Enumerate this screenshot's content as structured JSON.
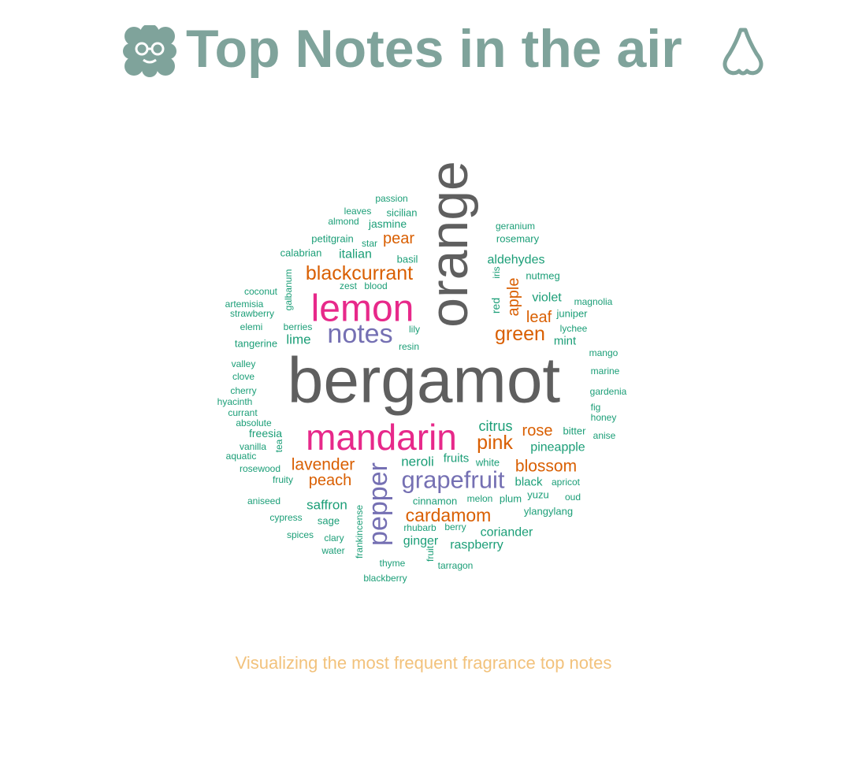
{
  "title": {
    "text": "Top Notes in the air",
    "icon_left": "nerd-face-cloud-icon",
    "icon_right": "nose-icon",
    "color": "#7fa39b"
  },
  "subtitle": {
    "text": "Visualizing the most frequent fragrance top notes",
    "color": "#f2c27c"
  },
  "chart_data": {
    "type": "wordcloud",
    "title": "Top Notes in the air",
    "subtitle": "Visualizing the most frequent fragrance top notes",
    "words": [
      {
        "text": "bergamot",
        "size": 82,
        "color": "#5f5f5f",
        "rotate": 0
      },
      {
        "text": "orange",
        "size": 68,
        "color": "#5f5f5f",
        "rotate": -90
      },
      {
        "text": "lemon",
        "size": 48,
        "color": "#e7298a",
        "rotate": 0
      },
      {
        "text": "mandarin",
        "size": 46,
        "color": "#e7298a",
        "rotate": 0
      },
      {
        "text": "grapefruit",
        "size": 31,
        "color": "#7570b3",
        "rotate": 0
      },
      {
        "text": "notes",
        "size": 34,
        "color": "#7570b3",
        "rotate": 0
      },
      {
        "text": "pepper",
        "size": 34,
        "color": "#7570b3",
        "rotate": -90
      },
      {
        "text": "blackcurrant",
        "size": 25,
        "color": "#d95f02",
        "rotate": 0
      },
      {
        "text": "green",
        "size": 25,
        "color": "#d95f02",
        "rotate": 0
      },
      {
        "text": "pink",
        "size": 25,
        "color": "#d95f02",
        "rotate": 0
      },
      {
        "text": "cardamom",
        "size": 23,
        "color": "#d95f02",
        "rotate": 0
      },
      {
        "text": "lavender",
        "size": 21,
        "color": "#d95f02",
        "rotate": 0
      },
      {
        "text": "blossom",
        "size": 21,
        "color": "#d95f02",
        "rotate": 0
      },
      {
        "text": "peach",
        "size": 20,
        "color": "#d95f02",
        "rotate": 0
      },
      {
        "text": "pear",
        "size": 20,
        "color": "#d95f02",
        "rotate": 0
      },
      {
        "text": "apple",
        "size": 20,
        "color": "#d95f02",
        "rotate": -90
      },
      {
        "text": "rose",
        "size": 20,
        "color": "#d95f02",
        "rotate": 0
      },
      {
        "text": "leaf",
        "size": 20,
        "color": "#d95f02",
        "rotate": 0
      },
      {
        "text": "citrus",
        "size": 18,
        "color": "#1b9e77",
        "rotate": 0
      },
      {
        "text": "neroli",
        "size": 17,
        "color": "#1b9e77",
        "rotate": 0
      },
      {
        "text": "saffron",
        "size": 17,
        "color": "#1b9e77",
        "rotate": 0
      },
      {
        "text": "italian",
        "size": 16,
        "color": "#1b9e77",
        "rotate": 0
      },
      {
        "text": "violet",
        "size": 16,
        "color": "#1b9e77",
        "rotate": 0
      },
      {
        "text": "pineapple",
        "size": 16,
        "color": "#1b9e77",
        "rotate": 0
      },
      {
        "text": "raspberry",
        "size": 16,
        "color": "#1b9e77",
        "rotate": 0
      },
      {
        "text": "coriander",
        "size": 16,
        "color": "#1b9e77",
        "rotate": 0
      },
      {
        "text": "ginger",
        "size": 16,
        "color": "#1b9e77",
        "rotate": 0
      },
      {
        "text": "lime",
        "size": 17,
        "color": "#1b9e77",
        "rotate": 0
      },
      {
        "text": "aldehydes",
        "size": 16,
        "color": "#1b9e77",
        "rotate": 0
      },
      {
        "text": "fruits",
        "size": 15,
        "color": "#1b9e77",
        "rotate": 0
      },
      {
        "text": "black",
        "size": 15,
        "color": "#1b9e77",
        "rotate": 0
      },
      {
        "text": "mint",
        "size": 15,
        "color": "#1b9e77",
        "rotate": 0
      },
      {
        "text": "jasmine",
        "size": 14,
        "color": "#1b9e77",
        "rotate": 0
      },
      {
        "text": "freesia",
        "size": 14,
        "color": "#1b9e77",
        "rotate": 0
      },
      {
        "text": "red",
        "size": 14,
        "color": "#1b9e77",
        "rotate": -90
      },
      {
        "text": "sicilian",
        "size": 13,
        "color": "#1b9e77",
        "rotate": 0
      },
      {
        "text": "petitgrain",
        "size": 13,
        "color": "#1b9e77",
        "rotate": 0
      },
      {
        "text": "rosemary",
        "size": 13,
        "color": "#1b9e77",
        "rotate": 0
      },
      {
        "text": "calabrian",
        "size": 13,
        "color": "#1b9e77",
        "rotate": 0
      },
      {
        "text": "basil",
        "size": 13,
        "color": "#1b9e77",
        "rotate": 0
      },
      {
        "text": "nutmeg",
        "size": 13,
        "color": "#1b9e77",
        "rotate": 0
      },
      {
        "text": "galbanum",
        "size": 12,
        "color": "#1b9e77",
        "rotate": -90
      },
      {
        "text": "juniper",
        "size": 13,
        "color": "#1b9e77",
        "rotate": 0
      },
      {
        "text": "sage",
        "size": 13,
        "color": "#1b9e77",
        "rotate": 0
      },
      {
        "text": "cinnamon",
        "size": 13,
        "color": "#1b9e77",
        "rotate": 0
      },
      {
        "text": "plum",
        "size": 13,
        "color": "#1b9e77",
        "rotate": 0
      },
      {
        "text": "white",
        "size": 13,
        "color": "#1b9e77",
        "rotate": 0
      },
      {
        "text": "yuzu",
        "size": 13,
        "color": "#1b9e77",
        "rotate": 0
      },
      {
        "text": "ylangylang",
        "size": 13,
        "color": "#1b9e77",
        "rotate": 0
      },
      {
        "text": "bitter",
        "size": 13,
        "color": "#1b9e77",
        "rotate": 0
      },
      {
        "text": "passion",
        "size": 12,
        "color": "#1b9e77",
        "rotate": 0
      },
      {
        "text": "leaves",
        "size": 12,
        "color": "#1b9e77",
        "rotate": 0
      },
      {
        "text": "almond",
        "size": 12,
        "color": "#1b9e77",
        "rotate": 0
      },
      {
        "text": "star",
        "size": 12,
        "color": "#1b9e77",
        "rotate": 0
      },
      {
        "text": "geranium",
        "size": 12,
        "color": "#1b9e77",
        "rotate": 0
      },
      {
        "text": "iris",
        "size": 12,
        "color": "#1b9e77",
        "rotate": -90
      },
      {
        "text": "zest",
        "size": 12,
        "color": "#1b9e77",
        "rotate": 0
      },
      {
        "text": "blood",
        "size": 12,
        "color": "#1b9e77",
        "rotate": 0
      },
      {
        "text": "coconut",
        "size": 12,
        "color": "#1b9e77",
        "rotate": 0
      },
      {
        "text": "artemisia",
        "size": 12,
        "color": "#1b9e77",
        "rotate": 0
      },
      {
        "text": "strawberry",
        "size": 12,
        "color": "#1b9e77",
        "rotate": 0
      },
      {
        "text": "elemi",
        "size": 12,
        "color": "#1b9e77",
        "rotate": 0
      },
      {
        "text": "berries",
        "size": 12,
        "color": "#1b9e77",
        "rotate": 0
      },
      {
        "text": "lily",
        "size": 12,
        "color": "#1b9e77",
        "rotate": 0
      },
      {
        "text": "magnolia",
        "size": 12,
        "color": "#1b9e77",
        "rotate": 0
      },
      {
        "text": "lychee",
        "size": 12,
        "color": "#1b9e77",
        "rotate": 0
      },
      {
        "text": "tangerine",
        "size": 13,
        "color": "#1b9e77",
        "rotate": 0
      },
      {
        "text": "resin",
        "size": 12,
        "color": "#1b9e77",
        "rotate": 0
      },
      {
        "text": "mango",
        "size": 12,
        "color": "#1b9e77",
        "rotate": 0
      },
      {
        "text": "valley",
        "size": 12,
        "color": "#1b9e77",
        "rotate": 0
      },
      {
        "text": "clove",
        "size": 12,
        "color": "#1b9e77",
        "rotate": 0
      },
      {
        "text": "marine",
        "size": 12,
        "color": "#1b9e77",
        "rotate": 0
      },
      {
        "text": "cherry",
        "size": 12,
        "color": "#1b9e77",
        "rotate": 0
      },
      {
        "text": "gardenia",
        "size": 12,
        "color": "#1b9e77",
        "rotate": 0
      },
      {
        "text": "hyacinth",
        "size": 12,
        "color": "#1b9e77",
        "rotate": 0
      },
      {
        "text": "fig",
        "size": 12,
        "color": "#1b9e77",
        "rotate": 0
      },
      {
        "text": "currant",
        "size": 12,
        "color": "#1b9e77",
        "rotate": 0
      },
      {
        "text": "honey",
        "size": 12,
        "color": "#1b9e77",
        "rotate": 0
      },
      {
        "text": "absolute",
        "size": 12,
        "color": "#1b9e77",
        "rotate": 0
      },
      {
        "text": "anise",
        "size": 12,
        "color": "#1b9e77",
        "rotate": 0
      },
      {
        "text": "vanilla",
        "size": 12,
        "color": "#1b9e77",
        "rotate": 0
      },
      {
        "text": "tea",
        "size": 12,
        "color": "#1b9e77",
        "rotate": -90
      },
      {
        "text": "aquatic",
        "size": 12,
        "color": "#1b9e77",
        "rotate": 0
      },
      {
        "text": "rosewood",
        "size": 12,
        "color": "#1b9e77",
        "rotate": 0
      },
      {
        "text": "fruity",
        "size": 12,
        "color": "#1b9e77",
        "rotate": 0
      },
      {
        "text": "apricot",
        "size": 12,
        "color": "#1b9e77",
        "rotate": 0
      },
      {
        "text": "oud",
        "size": 12,
        "color": "#1b9e77",
        "rotate": 0
      },
      {
        "text": "aniseed",
        "size": 12,
        "color": "#1b9e77",
        "rotate": 0
      },
      {
        "text": "melon",
        "size": 12,
        "color": "#1b9e77",
        "rotate": 0
      },
      {
        "text": "cypress",
        "size": 12,
        "color": "#1b9e77",
        "rotate": 0
      },
      {
        "text": "frankincense",
        "size": 12,
        "color": "#1b9e77",
        "rotate": -90
      },
      {
        "text": "rhubarb",
        "size": 12,
        "color": "#1b9e77",
        "rotate": 0
      },
      {
        "text": "berry",
        "size": 12,
        "color": "#1b9e77",
        "rotate": 0
      },
      {
        "text": "spices",
        "size": 12,
        "color": "#1b9e77",
        "rotate": 0
      },
      {
        "text": "clary",
        "size": 12,
        "color": "#1b9e77",
        "rotate": 0
      },
      {
        "text": "water",
        "size": 12,
        "color": "#1b9e77",
        "rotate": 0
      },
      {
        "text": "fruit",
        "size": 12,
        "color": "#1b9e77",
        "rotate": -90
      },
      {
        "text": "thyme",
        "size": 12,
        "color": "#1b9e77",
        "rotate": 0
      },
      {
        "text": "tarragon",
        "size": 12,
        "color": "#1b9e77",
        "rotate": 0
      },
      {
        "text": "blackberry",
        "size": 12,
        "color": "#1b9e77",
        "rotate": 0
      }
    ]
  }
}
